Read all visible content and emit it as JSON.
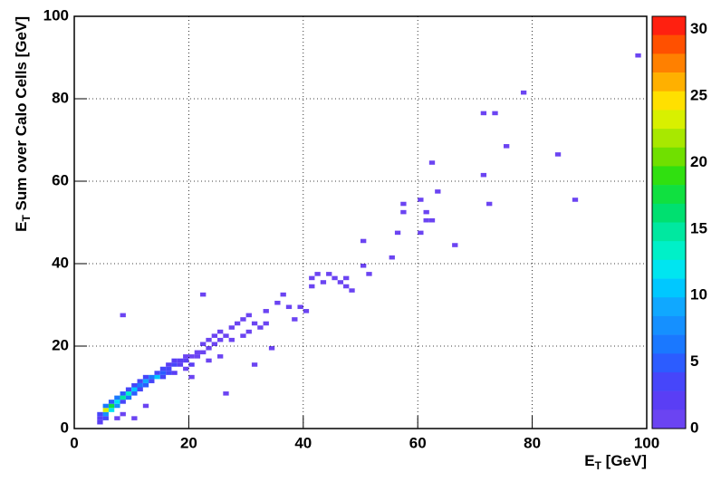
{
  "chart_data": {
    "type": "heatmap",
    "xlabel": [
      "E",
      "T",
      " [GeV]"
    ],
    "ylabel": [
      "E",
      "T",
      " Sum over Calo Cells [GeV]"
    ],
    "xlim": [
      0,
      100
    ],
    "ylim": [
      0,
      100
    ],
    "xticks": [
      0,
      20,
      40,
      60,
      80,
      100
    ],
    "yticks": [
      0,
      20,
      40,
      60,
      80,
      100
    ],
    "bin_width": 1,
    "bin_height": 1,
    "grid": true,
    "zlim": [
      0,
      31
    ],
    "zticks": [
      0,
      5,
      10,
      15,
      20,
      25,
      30
    ],
    "palette": [
      "#6b44f2",
      "#5a3ef5",
      "#4646fa",
      "#2c5cff",
      "#1a78ff",
      "#1590ff",
      "#10a8ff",
      "#00c8ff",
      "#00e5f0",
      "#00f0c8",
      "#00e8a0",
      "#00e070",
      "#10e040",
      "#30e010",
      "#70e000",
      "#a8e800",
      "#d8f000",
      "#ffe000",
      "#ffb000",
      "#ff8000",
      "#ff5000",
      "#ff2010"
    ],
    "x": [
      4,
      4,
      5,
      5,
      4,
      5,
      6,
      6,
      5,
      6,
      7,
      7,
      7,
      8,
      8,
      8,
      9,
      9,
      9,
      10,
      10,
      10,
      11,
      11,
      11,
      12,
      12,
      12,
      13,
      13,
      14,
      14,
      15,
      15,
      15,
      16,
      16,
      16,
      17,
      17,
      17,
      18,
      18,
      19,
      19,
      19,
      20,
      20,
      21,
      21,
      22,
      22,
      23,
      23,
      24,
      24,
      25,
      25,
      26,
      27,
      27,
      28,
      29,
      29,
      30,
      31,
      32,
      33,
      35,
      36,
      37,
      38,
      39,
      30,
      33,
      25,
      20,
      23,
      7,
      8,
      10,
      12,
      8,
      22,
      26,
      31,
      34,
      40,
      41,
      41,
      42,
      43,
      44,
      45,
      46,
      47,
      47,
      48,
      50,
      50,
      51,
      55,
      56,
      57,
      57,
      60,
      61,
      61,
      62,
      62,
      63,
      66,
      60,
      71,
      72,
      71,
      73,
      75,
      78,
      84,
      87,
      98
    ],
    "y": [
      1,
      2,
      2,
      3,
      3,
      4,
      4,
      5,
      5,
      6,
      5,
      6,
      7,
      6,
      7,
      8,
      7,
      8,
      9,
      8,
      9,
      10,
      9,
      10,
      11,
      10,
      11,
      12,
      11,
      12,
      12,
      13,
      12,
      13,
      14,
      13,
      14,
      15,
      13,
      15,
      16,
      15,
      16,
      14,
      16,
      17,
      15,
      17,
      17,
      18,
      18,
      20,
      19,
      21,
      20,
      22,
      21,
      23,
      22,
      21,
      24,
      25,
      26,
      22,
      27,
      25,
      24,
      28,
      30,
      32,
      29,
      26,
      29,
      23,
      25,
      17,
      12,
      16,
      2,
      3,
      2,
      5,
      27,
      32,
      8,
      15,
      19,
      28,
      34,
      36,
      37,
      35,
      37,
      36,
      35,
      36,
      34,
      33,
      39,
      45,
      37,
      41,
      47,
      52,
      54,
      47,
      52,
      50,
      50,
      64,
      57,
      44,
      55,
      61,
      54,
      76,
      76,
      68,
      81,
      66,
      55,
      90
    ],
    "values": [
      2,
      2,
      3,
      8,
      4,
      23,
      12,
      17,
      6,
      5,
      8,
      12,
      6,
      4,
      15,
      5,
      6,
      13,
      4,
      5,
      11,
      3,
      4,
      6,
      3,
      5,
      9,
      3,
      4,
      7,
      10,
      4,
      3,
      5,
      3,
      3,
      4,
      2,
      2,
      3,
      2,
      2,
      2,
      1,
      2,
      1,
      2,
      1,
      1,
      1,
      1,
      1,
      1,
      1,
      1,
      1,
      1,
      1,
      1,
      1,
      1,
      1,
      1,
      1,
      1,
      1,
      1,
      1,
      1,
      1,
      1,
      1,
      1,
      1,
      1,
      1,
      1,
      1,
      1,
      1,
      1,
      1,
      1,
      1,
      1,
      1,
      1,
      1,
      1,
      1,
      1,
      1,
      1,
      1,
      1,
      1,
      1,
      1,
      1,
      1,
      1,
      1,
      1,
      1,
      1,
      1,
      1,
      1,
      1,
      1,
      1,
      1,
      1,
      1,
      1,
      1,
      1,
      1,
      1,
      1,
      1,
      1
    ]
  }
}
